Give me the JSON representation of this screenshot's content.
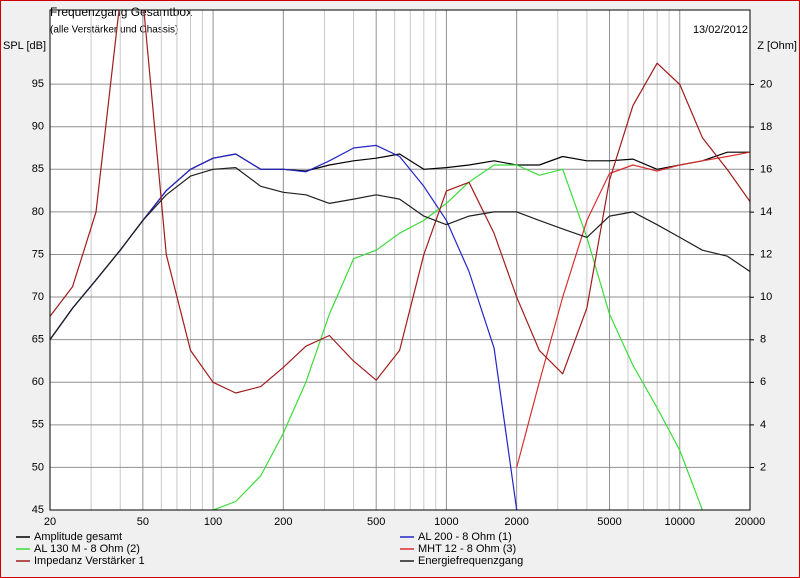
{
  "chart_data": {
    "type": "line",
    "title": "Frequenzgang Gesamtbox",
    "subtitle": "(alle Verstärker und Chassis)",
    "date": "13/02/2012",
    "y_label": "SPL [dB]",
    "y2_label": "Z [Ohm]",
    "log_x": true,
    "grid": true,
    "legend": "bottom",
    "x": [
      20,
      25,
      31.5,
      40,
      50,
      63,
      80,
      100,
      125,
      160,
      200,
      250,
      315,
      400,
      500,
      630,
      800,
      1000,
      1250,
      1600,
      2000,
      2500,
      3150,
      4000,
      5000,
      6300,
      8000,
      10000,
      12500,
      16000,
      20000
    ],
    "xlim": [
      20,
      20000
    ],
    "xticks": [
      20,
      50,
      100,
      200,
      500,
      1000,
      2000,
      5000,
      10000,
      20000
    ],
    "x_minor_ticks": [
      30,
      40,
      60,
      70,
      80,
      90,
      300,
      400,
      600,
      700,
      800,
      900,
      3000,
      4000,
      6000,
      7000,
      8000,
      9000
    ],
    "ylim": [
      45,
      103.7
    ],
    "yticks": [
      45,
      50,
      55,
      60,
      65,
      70,
      75,
      80,
      85,
      90,
      95
    ],
    "y2lim": [
      0,
      23.5
    ],
    "y2ticks": [
      2,
      4,
      6,
      8,
      10,
      12,
      14,
      16,
      18,
      20
    ],
    "series": [
      {
        "name": "Amplitude gesamt",
        "color": "#000000",
        "values": [
          65,
          68.7,
          72,
          75.5,
          79,
          82.5,
          85,
          86.3,
          86.8,
          85,
          85,
          84.8,
          85.5,
          86,
          86.3,
          86.8,
          85,
          85.2,
          85.5,
          86,
          85.5,
          85.5,
          86.5,
          86,
          86,
          86.2,
          85,
          85.5,
          86,
          87,
          87
        ]
      },
      {
        "name": "AL 200 - 8 Ohm (1)",
        "color": "#2424c8",
        "values": [
          65,
          68.7,
          72,
          75.5,
          79,
          82.5,
          85,
          86.3,
          86.8,
          85,
          85,
          84.7,
          86,
          87.5,
          87.8,
          86.5,
          83,
          79,
          73,
          64,
          45,
          null,
          null,
          null,
          null,
          null,
          null,
          null,
          null,
          null,
          null
        ]
      },
      {
        "name": "AL 130 M - 8 Ohm (2)",
        "color": "#3cdc3c",
        "values": [
          null,
          null,
          null,
          null,
          null,
          null,
          null,
          45,
          46,
          49,
          54,
          60,
          68,
          74.5,
          75.5,
          77.5,
          79,
          81,
          83.5,
          85.5,
          85.5,
          84.3,
          85,
          77,
          68,
          62,
          57,
          52,
          45,
          null,
          null
        ]
      },
      {
        "name": "MHT 12 - 8 Ohm (3)",
        "color": "#d83030",
        "values": [
          null,
          null,
          null,
          null,
          null,
          null,
          null,
          null,
          null,
          null,
          null,
          null,
          null,
          null,
          null,
          null,
          null,
          null,
          null,
          null,
          50,
          60,
          70,
          79,
          84.5,
          85.5,
          84.8,
          85.5,
          86,
          86.5,
          87
        ]
      },
      {
        "name": "Impedanz Verstärker 1",
        "color": "#a01c1c",
        "axis": "y2",
        "values": [
          9.1,
          10.5,
          14,
          24,
          24,
          12,
          7.5,
          6,
          5.5,
          5.8,
          6.7,
          7.7,
          8.2,
          7,
          6.1,
          7.5,
          12,
          15,
          15.4,
          13,
          10,
          7.5,
          6.4,
          9.5,
          15.5,
          19,
          21,
          20,
          17.5,
          16,
          14.5
        ]
      },
      {
        "name": "Energiefrequenzgang",
        "color": "#202020",
        "values": [
          65,
          68.7,
          72,
          75.5,
          79,
          82,
          84.2,
          85,
          85.2,
          83,
          82.3,
          82,
          81,
          81.5,
          82,
          81.5,
          79.5,
          78.5,
          79.5,
          80,
          80,
          79,
          78,
          77,
          79.5,
          80,
          78.5,
          77,
          75.5,
          74.8,
          73
        ]
      }
    ]
  }
}
